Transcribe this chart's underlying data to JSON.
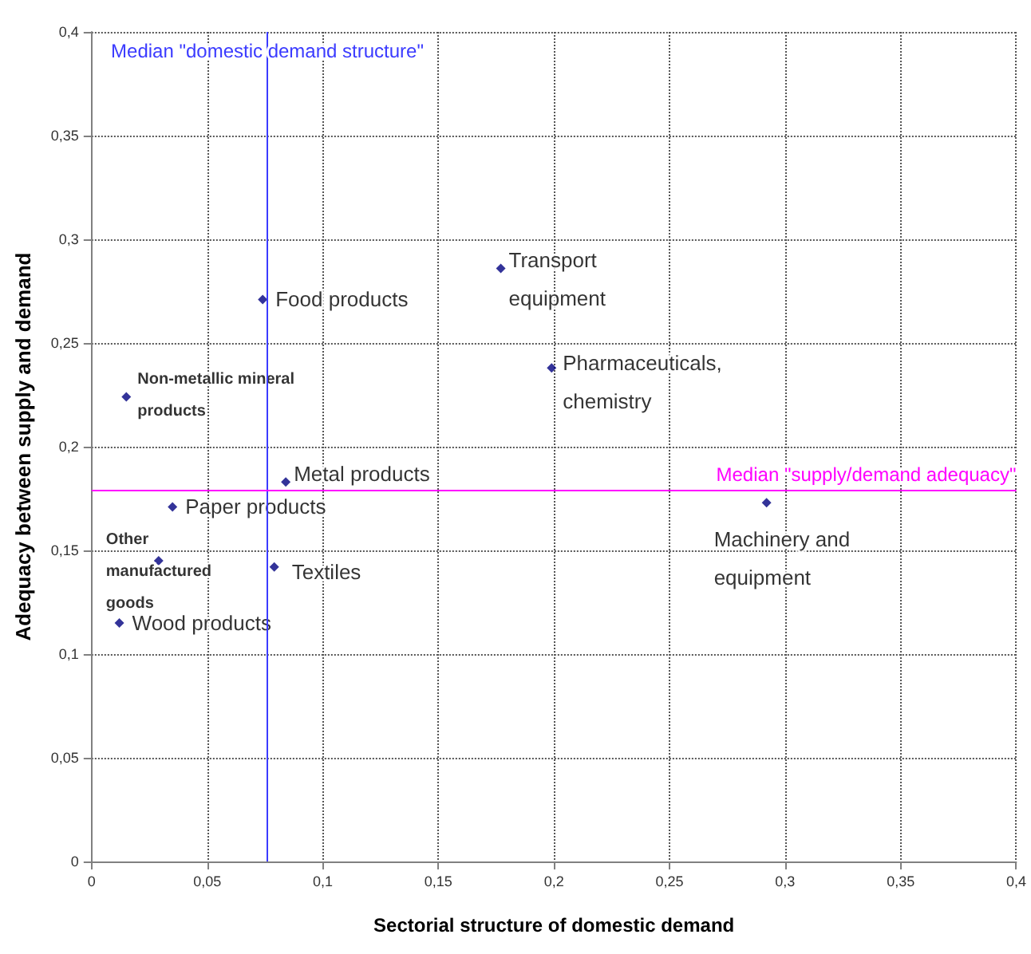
{
  "chart_data": {
    "type": "scatter",
    "xlabel": "Sectorial structure of domestic demand",
    "ylabel": "Adequacy between supply and demand",
    "xlim": [
      0,
      0.4
    ],
    "ylim": [
      0,
      0.4
    ],
    "xticks": [
      0,
      {
        "value": 0.05,
        "label": "0,05"
      },
      {
        "value": 0.1,
        "label": "0,1"
      },
      {
        "value": 0.15,
        "label": "0,15"
      },
      {
        "value": 0.2,
        "label": "0,2"
      },
      {
        "value": 0.25,
        "label": "0,25"
      },
      {
        "value": 0.3,
        "label": "0,3"
      },
      {
        "value": 0.35,
        "label": "0,35"
      },
      {
        "value": 0.4,
        "label": "0,4"
      }
    ],
    "yticks": [
      0,
      {
        "value": 0.05,
        "label": "0,05"
      },
      {
        "value": 0.1,
        "label": "0,1"
      },
      {
        "value": 0.15,
        "label": "0,15"
      },
      {
        "value": 0.2,
        "label": "0,2"
      },
      {
        "value": 0.25,
        "label": "0,25"
      },
      {
        "value": 0.3,
        "label": "0,3"
      },
      {
        "value": 0.35,
        "label": "0,35"
      },
      {
        "value": 0.4,
        "label": "0,4"
      }
    ],
    "grid": true,
    "marker": "diamond",
    "legend": false,
    "series": [
      {
        "name": "Transport equipment",
        "color": "#000080",
        "x": [
          0.177
        ],
        "values": [
          0.286
        ]
      },
      {
        "name": "Food products",
        "color": "#000080",
        "x": [
          0.074
        ],
        "values": [
          0.271
        ]
      },
      {
        "name": "Pharmaceuticals, chemistry",
        "color": "#000080",
        "x": [
          0.199
        ],
        "values": [
          0.238
        ]
      },
      {
        "name": "Non-metallic mineral products",
        "color": "#000080",
        "x": [
          0.015
        ],
        "values": [
          0.224
        ]
      },
      {
        "name": "Metal products",
        "color": "#000080",
        "x": [
          0.084
        ],
        "values": [
          0.183
        ]
      },
      {
        "name": "Paper products",
        "color": "#000080",
        "x": [
          0.035
        ],
        "values": [
          0.171
        ]
      },
      {
        "name": "Machinery and equipment",
        "color": "#000080",
        "x": [
          0.292
        ],
        "values": [
          0.173
        ]
      },
      {
        "name": "Other manufactured goods",
        "color": "#000080",
        "x": [
          0.029
        ],
        "values": [
          0.145
        ]
      },
      {
        "name": "Textiles",
        "color": "#000080",
        "x": [
          0.079
        ],
        "values": [
          0.142
        ]
      },
      {
        "name": "Wood products",
        "color": "#000080",
        "x": [
          0.012
        ],
        "values": [
          0.115
        ]
      }
    ],
    "ref_lines": [
      {
        "axis": "x",
        "value": 0.076,
        "label": "Median \"domestic demand structure\"",
        "color": "#3b3bff"
      },
      {
        "axis": "y",
        "value": 0.179,
        "label": "Median \"supply/demand adequacy\"",
        "color": "#ff00ff"
      }
    ]
  }
}
